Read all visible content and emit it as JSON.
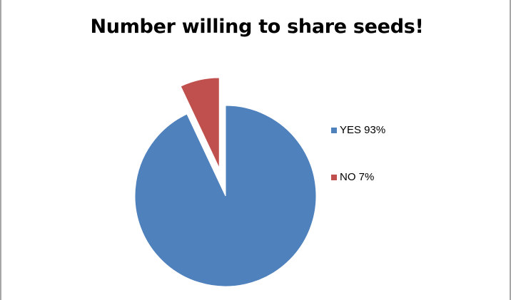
{
  "chart_data": {
    "type": "pie",
    "title": "Number willing to share seeds!",
    "slices": [
      {
        "label": "YES",
        "value": 93,
        "color": "#4f81bd",
        "exploded": false,
        "legend_text": "YES 93%"
      },
      {
        "label": "NO",
        "value": 7,
        "color": "#c0504d",
        "exploded": true,
        "legend_text": "NO 7%"
      }
    ],
    "legend": {
      "position": "right"
    },
    "start_angle_deg": 0,
    "direction": "clockwise"
  }
}
